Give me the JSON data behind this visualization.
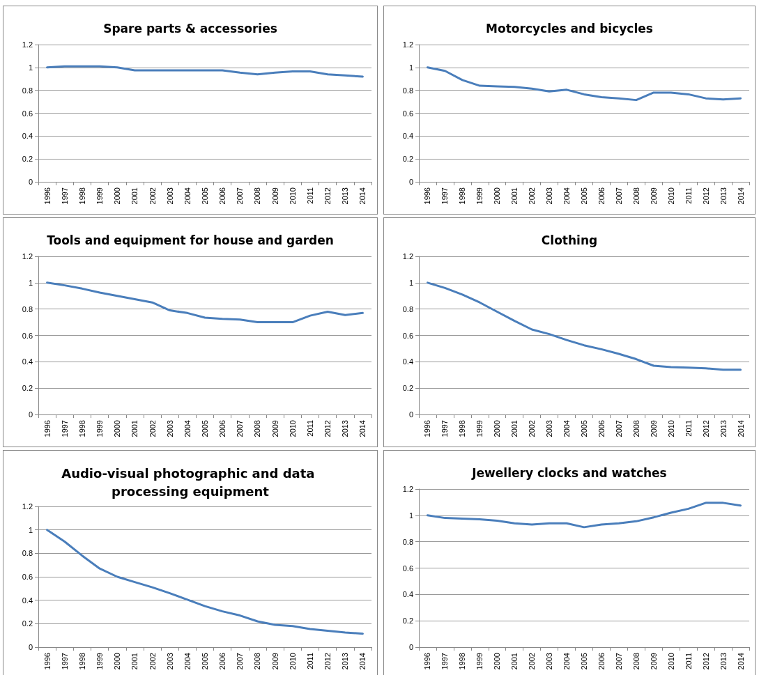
{
  "chart_data": [
    {
      "type": "line",
      "title": "Spare parts & accessories",
      "categories": [
        "1996",
        "1997",
        "1998",
        "1999",
        "2000",
        "2001",
        "2002",
        "2003",
        "2004",
        "2005",
        "2006",
        "2007",
        "2008",
        "2009",
        "2010",
        "2011",
        "2012",
        "2013",
        "2014"
      ],
      "series": [
        {
          "color": "#4a7ebb",
          "values": [
            1.0,
            1.01,
            1.01,
            1.01,
            1.0,
            0.975,
            0.975,
            0.975,
            0.975,
            0.975,
            0.975,
            0.955,
            0.94,
            0.955,
            0.965,
            0.965,
            0.94,
            0.93,
            0.92
          ]
        }
      ],
      "ylim": [
        0,
        1.2
      ],
      "yticks": [
        0,
        0.2,
        0.4,
        0.6,
        0.8,
        1,
        1.2
      ],
      "grid": "y",
      "marker": "none",
      "line_style": "solid"
    },
    {
      "type": "line",
      "title": "Motorcycles and bicycles",
      "categories": [
        "1996",
        "1997",
        "1998",
        "1999",
        "2000",
        "2001",
        "2002",
        "2003",
        "2004",
        "2005",
        "2006",
        "2007",
        "2008",
        "2009",
        "2010",
        "2011",
        "2012",
        "2013",
        "2014"
      ],
      "series": [
        {
          "color": "#4a7ebb",
          "values": [
            1.0,
            0.97,
            0.89,
            0.84,
            0.835,
            0.83,
            0.815,
            0.79,
            0.805,
            0.765,
            0.74,
            0.73,
            0.715,
            0.78,
            0.78,
            0.765,
            0.73,
            0.72,
            0.73
          ]
        }
      ],
      "ylim": [
        0,
        1.2
      ],
      "yticks": [
        0,
        0.2,
        0.4,
        0.6,
        0.8,
        1,
        1.2
      ],
      "grid": "y",
      "marker": "none",
      "line_style": "solid"
    },
    {
      "type": "line",
      "title": "Tools and equipment for house and garden",
      "categories": [
        "1996",
        "1997",
        "1998",
        "1999",
        "2000",
        "2001",
        "2002",
        "2003",
        "2004",
        "2005",
        "2006",
        "2007",
        "2008",
        "2009",
        "2010",
        "2011",
        "2012",
        "2013",
        "2014"
      ],
      "series": [
        {
          "color": "#4a7ebb",
          "values": [
            1.0,
            0.98,
            0.955,
            0.925,
            0.9,
            0.875,
            0.85,
            0.79,
            0.77,
            0.735,
            0.725,
            0.72,
            0.7,
            0.7,
            0.7,
            0.75,
            0.78,
            0.755,
            0.77
          ]
        }
      ],
      "ylim": [
        0,
        1.2
      ],
      "yticks": [
        0,
        0.2,
        0.4,
        0.6,
        0.8,
        1,
        1.2
      ],
      "grid": "y",
      "marker": "none",
      "line_style": "solid"
    },
    {
      "type": "line",
      "title": "Clothing",
      "categories": [
        "1996",
        "1997",
        "1998",
        "1999",
        "2000",
        "2001",
        "2002",
        "2003",
        "2004",
        "2005",
        "2006",
        "2007",
        "2008",
        "2009",
        "2010",
        "2011",
        "2012",
        "2013",
        "2014"
      ],
      "series": [
        {
          "color": "#4a7ebb",
          "values": [
            1.0,
            0.96,
            0.91,
            0.85,
            0.78,
            0.71,
            0.645,
            0.61,
            0.565,
            0.525,
            0.495,
            0.46,
            0.42,
            0.37,
            0.36,
            0.355,
            0.35,
            0.34,
            0.34
          ]
        }
      ],
      "ylim": [
        0,
        1.2
      ],
      "yticks": [
        0,
        0.2,
        0.4,
        0.6,
        0.8,
        1,
        1.2
      ],
      "grid": "y",
      "marker": "none",
      "line_style": "solid"
    },
    {
      "type": "line",
      "title": "Audio-visual photographic and data processing equipment",
      "categories": [
        "1996",
        "1997",
        "1998",
        "1999",
        "2000",
        "2001",
        "2002",
        "2003",
        "2004",
        "2005",
        "2006",
        "2007",
        "2008",
        "2009",
        "2010",
        "2011",
        "2012",
        "2013",
        "2014"
      ],
      "series": [
        {
          "color": "#4a7ebb",
          "values": [
            1.0,
            0.9,
            0.78,
            0.67,
            0.6,
            0.555,
            0.51,
            0.46,
            0.405,
            0.35,
            0.305,
            0.27,
            0.22,
            0.19,
            0.18,
            0.155,
            0.14,
            0.125,
            0.115
          ]
        }
      ],
      "ylim": [
        0,
        1.2
      ],
      "yticks": [
        0,
        0.2,
        0.4,
        0.6,
        0.8,
        1,
        1.2
      ],
      "grid": "y",
      "marker": "none",
      "line_style": "solid"
    },
    {
      "type": "line",
      "title": "Jewellery clocks and watches",
      "categories": [
        "1996",
        "1997",
        "1998",
        "1999",
        "2000",
        "2001",
        "2002",
        "2003",
        "2004",
        "2005",
        "2006",
        "2007",
        "2008",
        "2009",
        "2010",
        "2011",
        "2012",
        "2013",
        "2014"
      ],
      "series": [
        {
          "color": "#4a7ebb",
          "values": [
            1.0,
            0.98,
            0.975,
            0.97,
            0.96,
            0.94,
            0.93,
            0.94,
            0.94,
            0.91,
            0.93,
            0.94,
            0.955,
            0.985,
            1.02,
            1.05,
            1.095,
            1.095,
            1.075
          ]
        }
      ],
      "ylim": [
        0,
        1.2
      ],
      "yticks": [
        0,
        0.2,
        0.4,
        0.6,
        0.8,
        1,
        1.2
      ],
      "grid": "y",
      "marker": "none",
      "line_style": "solid"
    }
  ]
}
